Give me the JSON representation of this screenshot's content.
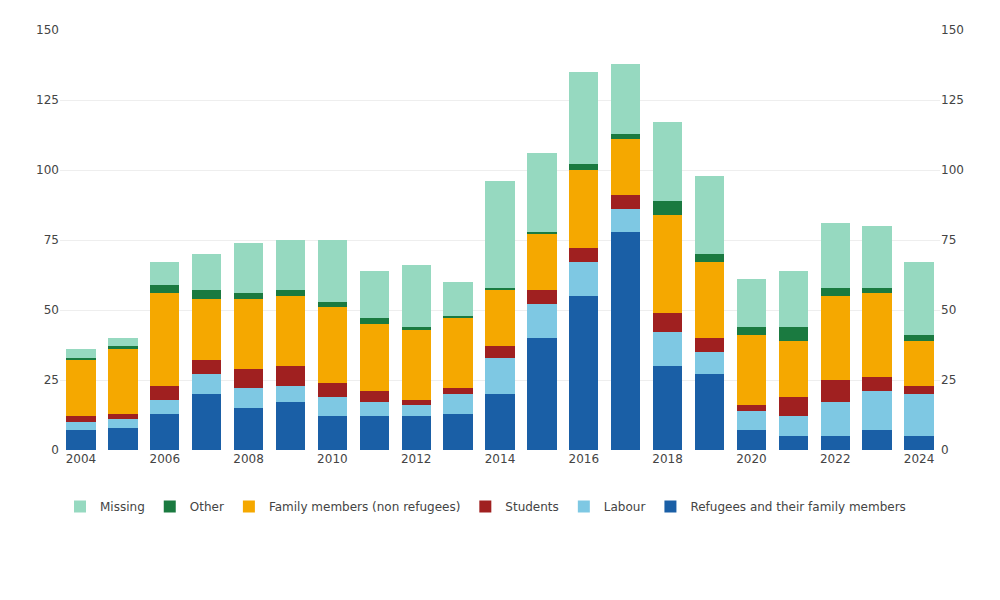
{
  "chart_data": {
    "type": "bar",
    "stacked": true,
    "categories": [
      "2004",
      null,
      "2006",
      null,
      "2008",
      null,
      "2010",
      null,
      "2012",
      null,
      "2014",
      null,
      "2016",
      null,
      "2018",
      null,
      "2020",
      null,
      "2022",
      null,
      "2024"
    ],
    "series": [
      {
        "name": "Refugees and their family members",
        "color": "#1A5FA6",
        "values": [
          7,
          8,
          13,
          20,
          15,
          17,
          12,
          12,
          12,
          13,
          20,
          40,
          55,
          78,
          30,
          27,
          7,
          5,
          5,
          7,
          5
        ]
      },
      {
        "name": "Labour",
        "color": "#7EC8E3",
        "values": [
          3,
          3,
          5,
          7,
          7,
          6,
          7,
          5,
          4,
          7,
          13,
          12,
          12,
          8,
          12,
          8,
          7,
          7,
          12,
          14,
          15
        ]
      },
      {
        "name": "Students",
        "color": "#A02020",
        "values": [
          2,
          2,
          5,
          5,
          7,
          7,
          5,
          4,
          2,
          2,
          4,
          5,
          5,
          5,
          7,
          5,
          2,
          7,
          8,
          5,
          3
        ]
      },
      {
        "name": "Family members (non refugees)",
        "color": "#F5A800",
        "values": [
          20,
          23,
          33,
          22,
          25,
          25,
          27,
          24,
          25,
          25,
          20,
          20,
          28,
          20,
          35,
          27,
          25,
          20,
          30,
          30,
          16
        ]
      },
      {
        "name": "Other",
        "color": "#1A7A40",
        "values": [
          1,
          1,
          3,
          3,
          2,
          2,
          2,
          2,
          1,
          1,
          1,
          1,
          2,
          2,
          5,
          3,
          3,
          5,
          3,
          2,
          2
        ]
      },
      {
        "name": "Missing",
        "color": "#96D9C0",
        "values": [
          3,
          3,
          8,
          13,
          18,
          18,
          22,
          17,
          22,
          12,
          38,
          28,
          33,
          25,
          28,
          28,
          17,
          20,
          23,
          22,
          26
        ]
      }
    ],
    "ylim": [
      0,
      150
    ],
    "yticks": [
      0,
      25,
      50,
      75,
      100,
      125,
      150
    ],
    "y2lim": [
      0,
      150
    ],
    "y2ticks": [
      0,
      25,
      50,
      75,
      100,
      125,
      150
    ],
    "grid": true,
    "legend": "bottom"
  }
}
